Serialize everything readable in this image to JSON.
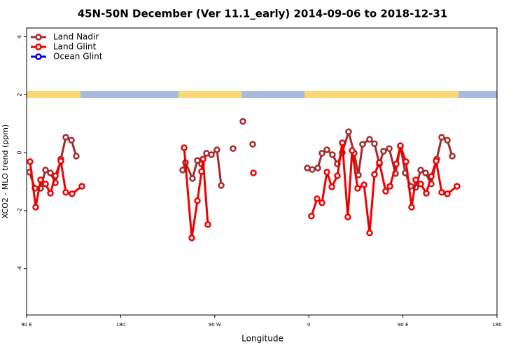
{
  "chart_data": {
    "type": "line",
    "title": "45N-50N December (Ver 11.1_early)   2014-09-06 to 2018-12-31",
    "xlabel": "Longitude",
    "ylabel": "XCO2 - MLO trend (ppm)",
    "xlim": [
      90,
      540
    ],
    "ylim": [
      -5.6,
      4.3
    ],
    "xticks": [
      {
        "value": 90,
        "label": "90 E"
      },
      180,
      {
        "value": 270,
        "label": "90 W"
      },
      {
        "value": 360,
        "label": "0"
      },
      {
        "value": 450,
        "label": "90 E"
      },
      {
        "value": 540,
        "label": "180"
      }
    ],
    "yticks": [
      -4,
      -2,
      0,
      2,
      4
    ],
    "legend": "top-left",
    "series": [
      {
        "name": "Land Nadir",
        "color": "#a52a2a",
        "x": [
          92.7,
          98.0,
          103.4,
          108.1,
          112.8,
          117.5,
          122.8,
          127.5,
          132.9,
          137.5,
          null,
          239.3,
          242.0,
          248.7,
          253.4,
          257.4,
          262.1,
          266.8,
          272.1,
          276.2,
          null,
          287.5,
          null,
          296.9,
          null,
          306.3,
          null,
          358.5,
          363.2,
          368.6,
          372.6,
          377.3,
          382.6,
          387.3,
          392.0,
          398.0,
          403.4,
          407.4,
          411.4,
          418.1,
          422.8,
          427.5,
          431.5,
          436.9,
          442.9,
          447.6,
          452.3,
          457.6,
          462.3,
          467.0,
          471.7,
          477.1,
          482.4,
          487.1,
          492.5,
          497.2
        ],
        "values": [
          -0.67,
          -1.23,
          -1.23,
          -0.6,
          -0.7,
          -1.04,
          -0.22,
          0.53,
          0.43,
          -0.12,
          null,
          -0.6,
          -0.34,
          -0.89,
          -0.27,
          -0.39,
          -0.02,
          -0.07,
          0.1,
          -1.13,
          null,
          0.14,
          null,
          1.08,
          null,
          0.29,
          null,
          -0.53,
          -0.58,
          -0.53,
          -0.02,
          0.1,
          -0.07,
          -0.39,
          0.0,
          0.72,
          -0.02,
          -0.77,
          0.29,
          0.46,
          0.31,
          -0.39,
          0.05,
          0.14,
          -0.72,
          0.22,
          -0.7,
          -1.16,
          -1.2,
          -0.6,
          -0.7,
          -1.08,
          -0.22,
          0.53,
          0.43,
          -0.12
        ]
      },
      {
        "name": "Land Glint",
        "color": "#ee0000",
        "x": [
          93.3,
          98.7,
          103.4,
          108.1,
          112.8,
          117.5,
          122.8,
          127.5,
          133.5,
          142.9,
          null,
          240.7,
          248.0,
          253.4,
          257.4,
          258.8,
          263.4,
          null,
          307.0,
          null,
          362.5,
          367.9,
          372.6,
          377.3,
          382.0,
          387.3,
          392.0,
          397.3,
          401.4,
          406.7,
          412.8,
          418.1,
          422.8,
          427.5,
          433.5,
          437.6,
          443.6,
          447.6,
          452.9,
          458.3,
          462.3,
          467.0,
          472.4,
          477.1,
          481.8,
          487.1,
          492.5,
          501.8
        ],
        "values": [
          -0.31,
          -1.88,
          -0.94,
          -1.08,
          -1.4,
          -0.8,
          -0.29,
          -1.37,
          -1.42,
          -1.16,
          null,
          0.17,
          -2.94,
          -1.66,
          -0.65,
          -0.22,
          -2.48,
          null,
          -0.7,
          null,
          -2.19,
          -1.59,
          -1.73,
          -0.67,
          -1.18,
          -0.8,
          0.34,
          -2.22,
          0.07,
          -1.23,
          -1.11,
          -2.77,
          -0.75,
          -0.34,
          -1.33,
          -1.16,
          -0.39,
          0.24,
          -0.31,
          -1.88,
          -0.94,
          -1.08,
          -1.4,
          -0.82,
          -0.29,
          -1.37,
          -1.42,
          -1.16
        ]
      },
      {
        "name": "Ocean Glint",
        "color": "#0000ee",
        "x": [],
        "values": []
      }
    ]
  }
}
